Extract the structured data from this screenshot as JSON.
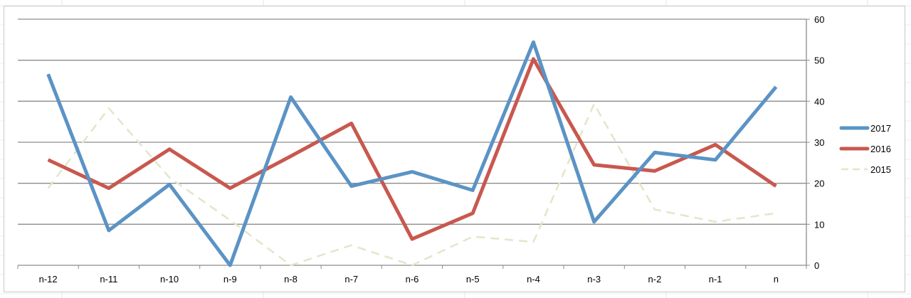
{
  "chart_data": {
    "type": "line",
    "categories": [
      "n-12",
      "n-11",
      "n-10",
      "n-9",
      "n-8",
      "n-7",
      "n-6",
      "n-5",
      "n-4",
      "n-3",
      "n-2",
      "n-1",
      "n"
    ],
    "series": [
      {
        "name": "2017",
        "color": "#5b93c5",
        "style": "solid",
        "values": [
          46.6,
          8.5,
          19.7,
          0,
          41,
          19.3,
          22.8,
          18.3,
          54.4,
          10.6,
          27.5,
          25.7,
          43.5
        ]
      },
      {
        "name": "2016",
        "color": "#c8584f",
        "style": "solid",
        "values": [
          25.7,
          18.8,
          28.3,
          18.8,
          26.6,
          34.6,
          6.4,
          12.7,
          50.3,
          24.5,
          23,
          29.4,
          19.3
        ]
      },
      {
        "name": "2015",
        "color": "#e3e6c8",
        "style": "dashed",
        "values": [
          18.8,
          38.3,
          21.4,
          11,
          0,
          4.9,
          0,
          7,
          5.7,
          39.3,
          13.6,
          10.6,
          12.7
        ]
      }
    ],
    "y_axis": {
      "position": "right",
      "ylim": [
        0,
        60
      ],
      "ticks": [
        "0",
        "10",
        "20",
        "30",
        "40",
        "50",
        "60"
      ]
    },
    "grid": true,
    "legend": "right",
    "title": "",
    "xlabel": "",
    "ylabel": ""
  }
}
